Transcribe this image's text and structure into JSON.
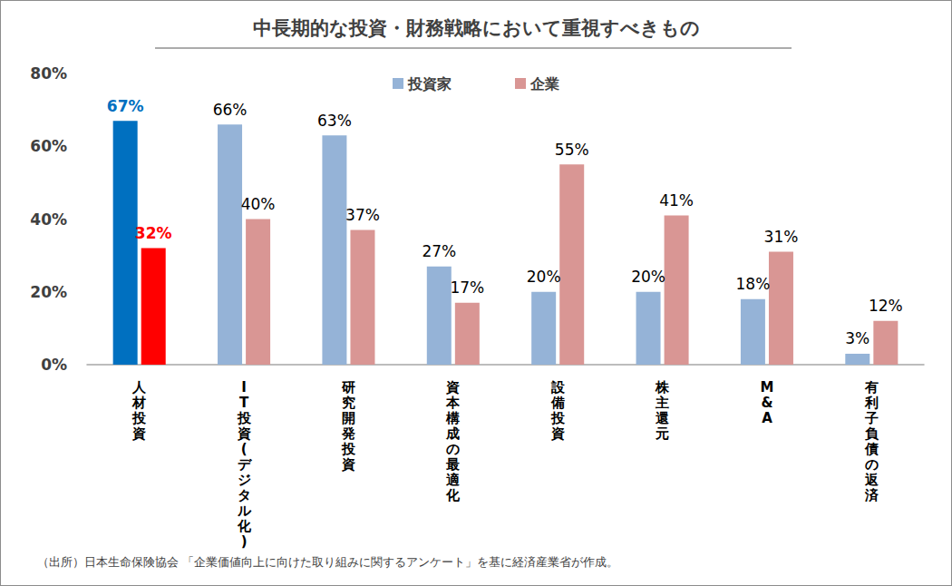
{
  "chart_data": {
    "type": "bar",
    "title": "中長期的な投資・財務戦略において重視すべきもの",
    "categories": [
      "人材投資",
      "IT投資(デジタル化)",
      "研究開発投資",
      "資本構成の最適化",
      "設備投資",
      "株主還元",
      "M&A",
      "有利子負債の返済"
    ],
    "series": [
      {
        "name": "投資家",
        "color": "#95b3d7",
        "colors": [
          "#0070c0",
          "#95b3d7",
          "#95b3d7",
          "#95b3d7",
          "#95b3d7",
          "#95b3d7",
          "#95b3d7",
          "#95b3d7"
        ],
        "values": [
          67,
          66,
          63,
          27,
          20,
          20,
          18,
          3
        ],
        "value_labels": [
          "67%",
          "66%",
          "63%",
          "27%",
          "20%",
          "20%",
          "18%",
          "3%"
        ]
      },
      {
        "name": "企業",
        "color": "#d99694",
        "colors": [
          "#ff0000",
          "#d99694",
          "#d99694",
          "#d99694",
          "#d99694",
          "#d99694",
          "#d99694",
          "#d99694"
        ],
        "values": [
          32,
          40,
          37,
          17,
          55,
          41,
          31,
          12
        ],
        "value_labels": [
          "32%",
          "40%",
          "37%",
          "17%",
          "55%",
          "41%",
          "31%",
          "12%"
        ]
      }
    ],
    "ylim": [
      0,
      80
    ],
    "yticks": [
      {
        "value": 0,
        "label": "0%"
      },
      {
        "value": 20,
        "label": "20%"
      },
      {
        "value": 40,
        "label": "40%"
      },
      {
        "value": 60,
        "label": "60%"
      },
      {
        "value": 80,
        "label": "80%"
      }
    ],
    "grid": false,
    "legend": "top",
    "data_labels": true,
    "source": "（出所）日本生命保険協会 「企業価値向上に向けた取り組みに関するアンケート」を基に経済産業省が作成。"
  }
}
